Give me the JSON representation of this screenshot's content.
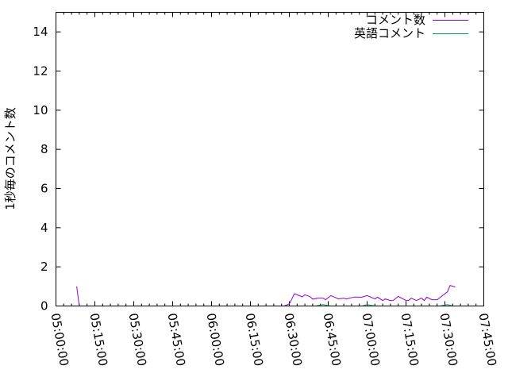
{
  "chart_data": {
    "type": "line",
    "title": "",
    "xlabel": "",
    "ylabel": "1秒毎のコメント数",
    "xlim": [
      "05:00:00",
      "07:45:00"
    ],
    "ylim": [
      0,
      15
    ],
    "xticks": [
      "05:00:00",
      "05:15:00",
      "05:30:00",
      "05:45:00",
      "06:00:00",
      "06:15:00",
      "06:30:00",
      "06:45:00",
      "07:00:00",
      "07:15:00",
      "07:30:00",
      "07:45:00"
    ],
    "yticks": [
      "0",
      "2",
      "4",
      "6",
      "8",
      "10",
      "12",
      "14"
    ],
    "grid": false,
    "legend": "top-right",
    "series": [
      {
        "name": "コメント数",
        "color": "#9400d3",
        "x": [
          "05:08",
          "05:09",
          null,
          "06:18",
          "06:20",
          null,
          "06:24",
          "06:28",
          "06:30",
          "06:32",
          "06:35",
          "06:36",
          "06:38",
          "06:39",
          "06:41",
          "06:43",
          "06:44",
          "06:46",
          "06:49",
          "06:51",
          "06:52",
          "06:55",
          "06:58",
          "07:00",
          "07:03",
          "07:04",
          "07:06",
          "07:07",
          "07:09",
          "07:10",
          "07:12",
          "07:15",
          "07:16",
          "07:17",
          "07:19",
          "07:21",
          "07:22",
          "07:23",
          "07:25",
          "07:27",
          "07:31",
          "07:32",
          "07:34"
        ],
        "y": [
          1,
          0,
          null,
          0,
          0,
          null,
          0,
          0,
          0.1,
          0.63,
          0.47,
          0.57,
          0.48,
          0.35,
          0.4,
          0.4,
          0.32,
          0.53,
          0.36,
          0.4,
          0.36,
          0.46,
          0.45,
          0.53,
          0.36,
          0.45,
          0.28,
          0.36,
          0.28,
          0.28,
          0.49,
          0.28,
          0.28,
          0.4,
          0.28,
          0.4,
          0.28,
          0.45,
          0.32,
          0.32,
          0.73,
          1.05,
          0.97
        ]
      },
      {
        "name": "英語コメント",
        "color": "#009e73",
        "x": [
          "06:30",
          "06:38",
          "06:40",
          "06:43",
          "06:46",
          null,
          "06:52",
          "06:58",
          "07:00",
          "07:03",
          null,
          "07:10",
          "07:15",
          null,
          "07:28",
          "07:31",
          "07:33"
        ],
        "y": [
          0,
          0,
          0,
          0.07,
          0,
          null,
          0,
          0,
          0.07,
          0,
          null,
          0,
          0,
          null,
          0,
          0.07,
          0
        ]
      }
    ]
  }
}
